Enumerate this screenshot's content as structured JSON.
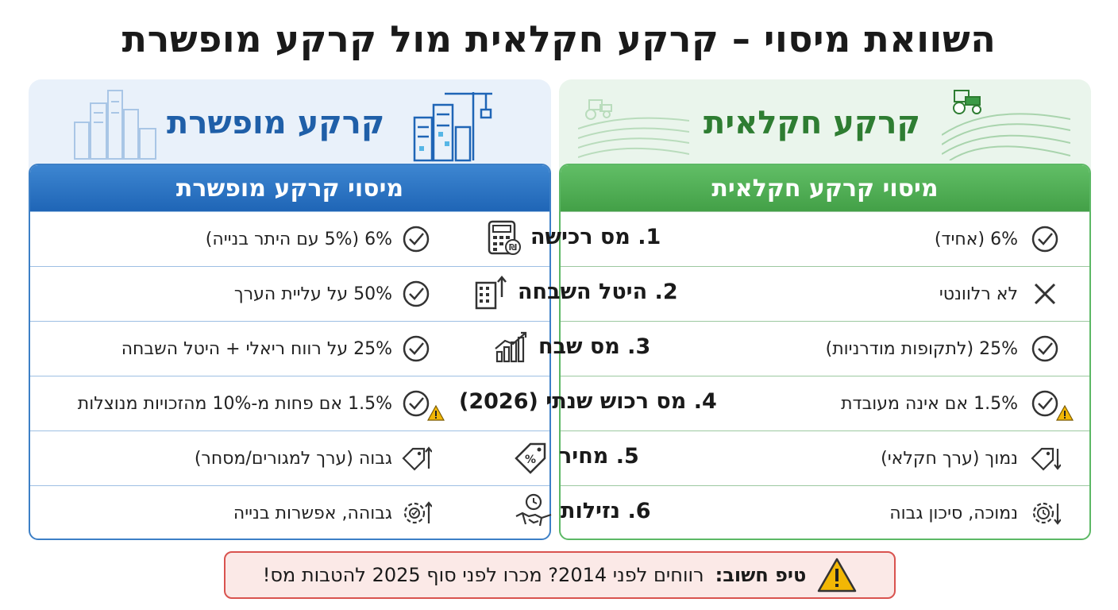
{
  "title": "השוואת מיסוי – קרקע חקלאית מול קרקע מופשרת",
  "agricultural": {
    "hero_title": "קרקע חקלאית",
    "table_header": "מיסוי קרקע חקלאית",
    "rows": [
      {
        "text": "6% (אחיד)",
        "icon": "check-circle-icon"
      },
      {
        "text": "לא רלוונטי",
        "icon": "x-icon"
      },
      {
        "text": "25% (לתקופות מודרניות)",
        "icon": "check-circle-icon"
      },
      {
        "text": "1.5% אם אינה מעובדת",
        "icon": "check-circle-warning-icon"
      },
      {
        "text": "נמוך (ערך חקלאי)",
        "icon": "price-tag-arrow-down-icon"
      },
      {
        "text": "נמוכה, סיכון גבוה",
        "icon": "gear-clock-arrow-down-icon"
      }
    ]
  },
  "rezoned": {
    "hero_title": "קרקע מופשרת",
    "table_header": "מיסוי קרקע מופשרת",
    "rows": [
      {
        "text": "6% (5% עם היתר בנייה)",
        "icon": "check-circle-icon"
      },
      {
        "text": "50% על עליית הערך",
        "icon": "check-circle-icon"
      },
      {
        "text": "25% על רווח ריאלי + היטל השבחה",
        "icon": "check-circle-icon"
      },
      {
        "text": "1.5% אם פחות מ-10% מהזכויות מנוצלות",
        "icon": "check-circle-warning-icon"
      },
      {
        "text": "גבוה (ערך למגורים/מסחר)",
        "icon": "price-tag-arrow-up-icon"
      },
      {
        "text": "גבוהה, אפשרות בנייה",
        "icon": "gear-arrow-up-icon"
      }
    ]
  },
  "criteria": [
    {
      "label": "1. מס רכישה",
      "icon": "calculator-icon"
    },
    {
      "label": "2. היטל השבחה",
      "icon": "building-arrow-icon"
    },
    {
      "label": "3. מס שבח",
      "icon": "growth-chart-icon"
    },
    {
      "label": "4. מס רכוש שנתי (2026)",
      "icon": "none"
    },
    {
      "label": "5. מחיר",
      "icon": "percent-tag-icon"
    },
    {
      "label": "6. נזילות",
      "icon": "handshake-clock-icon"
    }
  ],
  "tip": {
    "label": "טיפ חשוב:",
    "text": "רווחים לפני 2014? מכרו לפני סוף 2025 להטבות מס!"
  },
  "colors": {
    "green": "#43a047",
    "blue": "#1f65b6",
    "warning": "#f2b705",
    "tip_border": "#d9534f"
  }
}
